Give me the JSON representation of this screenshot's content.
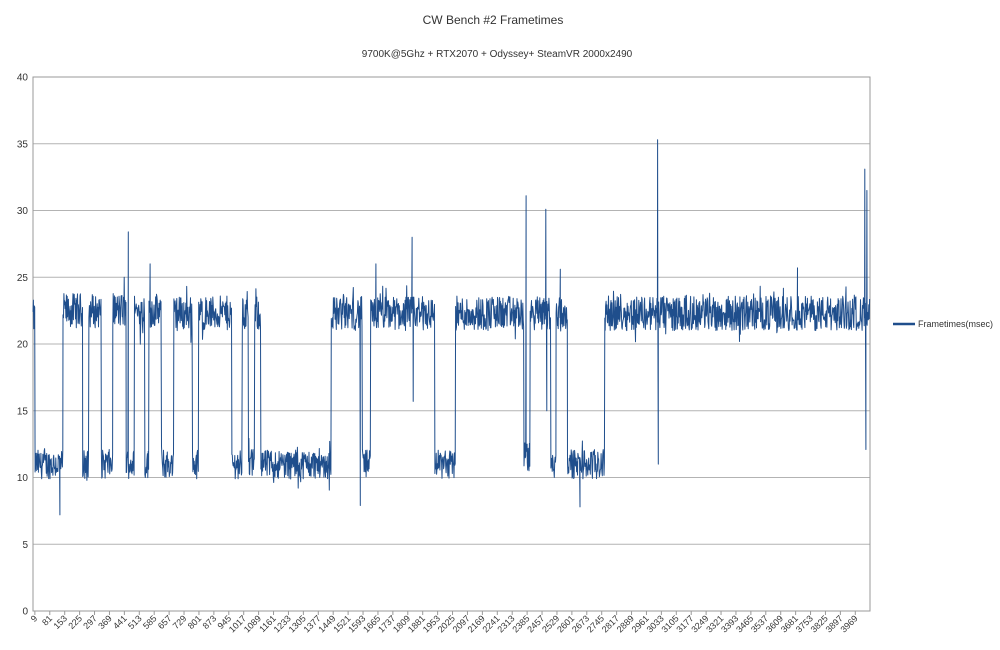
{
  "chart_data": {
    "type": "line",
    "title": "CW Bench #2 Frametimes",
    "subtitle": "9700K@5Ghz + RTX2070 + Odyssey+   SteamVR 2000x2490",
    "xlabel": "",
    "ylabel": "",
    "ylim": [
      0,
      40
    ],
    "yticks": [
      0,
      5,
      10,
      15,
      20,
      25,
      30,
      35,
      40
    ],
    "xlim": [
      0,
      4040
    ],
    "xtick_labels": [
      "9",
      "81",
      "153",
      "225",
      "297",
      "369",
      "441",
      "513",
      "585",
      "657",
      "729",
      "801",
      "873",
      "945",
      "1017",
      "1089",
      "1161",
      "1233",
      "1305",
      "1377",
      "1449",
      "1521",
      "1593",
      "1665",
      "1737",
      "1809",
      "1881",
      "1953",
      "2025",
      "2097",
      "2169",
      "2241",
      "2313",
      "2385",
      "2457",
      "2529",
      "2601",
      "2673",
      "2745",
      "2817",
      "2889",
      "2961",
      "3033",
      "3105",
      "3177",
      "3249",
      "3321",
      "3393",
      "3465",
      "3537",
      "3609",
      "3681",
      "3753",
      "3825",
      "3897",
      "3969"
    ],
    "grid": true,
    "legend_position": "right",
    "series": [
      {
        "name": "Frametimes(msec)",
        "color": "#1f4e8c",
        "segments": [
          {
            "x0": 0,
            "x1": 10,
            "level": 22.0
          },
          {
            "x0": 10,
            "x1": 120,
            "level": 11.0
          },
          {
            "x0": 120,
            "x1": 145,
            "level": 11.0
          },
          {
            "x0": 145,
            "x1": 240,
            "level": 22.5
          },
          {
            "x0": 240,
            "x1": 270,
            "level": 11.0
          },
          {
            "x0": 270,
            "x1": 330,
            "level": 22.5
          },
          {
            "x0": 330,
            "x1": 385,
            "level": 11.0
          },
          {
            "x0": 385,
            "x1": 450,
            "level": 22.5
          },
          {
            "x0": 450,
            "x1": 490,
            "level": 11.0
          },
          {
            "x0": 490,
            "x1": 540,
            "level": 22.5
          },
          {
            "x0": 540,
            "x1": 560,
            "level": 11.0
          },
          {
            "x0": 560,
            "x1": 620,
            "level": 22.5
          },
          {
            "x0": 620,
            "x1": 680,
            "level": 11.0
          },
          {
            "x0": 680,
            "x1": 770,
            "level": 22.3
          },
          {
            "x0": 770,
            "x1": 800,
            "level": 11.0
          },
          {
            "x0": 800,
            "x1": 960,
            "level": 22.3
          },
          {
            "x0": 960,
            "x1": 1010,
            "level": 11.0
          },
          {
            "x0": 1010,
            "x1": 1040,
            "level": 22.3
          },
          {
            "x0": 1040,
            "x1": 1070,
            "level": 11.0
          },
          {
            "x0": 1070,
            "x1": 1100,
            "level": 22.3
          },
          {
            "x0": 1100,
            "x1": 1440,
            "level": 11.0
          },
          {
            "x0": 1440,
            "x1": 1590,
            "level": 22.3
          },
          {
            "x0": 1590,
            "x1": 1630,
            "level": 11.0
          },
          {
            "x0": 1630,
            "x1": 1940,
            "level": 22.3
          },
          {
            "x0": 1940,
            "x1": 2040,
            "level": 11.0
          },
          {
            "x0": 2040,
            "x1": 2370,
            "level": 22.3
          },
          {
            "x0": 2370,
            "x1": 2400,
            "level": 11.5
          },
          {
            "x0": 2400,
            "x1": 2500,
            "level": 22.3
          },
          {
            "x0": 2500,
            "x1": 2525,
            "level": 11.0
          },
          {
            "x0": 2525,
            "x1": 2580,
            "level": 22.3
          },
          {
            "x0": 2580,
            "x1": 2760,
            "level": 11.0
          },
          {
            "x0": 2760,
            "x1": 4040,
            "level": 22.3
          }
        ],
        "spikes": [
          {
            "x": 5,
            "y": 22.0
          },
          {
            "x": 130,
            "y": 7.2
          },
          {
            "x": 440,
            "y": 25.0
          },
          {
            "x": 460,
            "y": 28.4
          },
          {
            "x": 565,
            "y": 26.0
          },
          {
            "x": 1580,
            "y": 7.9
          },
          {
            "x": 1655,
            "y": 26.0
          },
          {
            "x": 1830,
            "y": 28.0
          },
          {
            "x": 1835,
            "y": 15.7
          },
          {
            "x": 2380,
            "y": 31.1
          },
          {
            "x": 2385,
            "y": 12.5
          },
          {
            "x": 2475,
            "y": 30.1
          },
          {
            "x": 2480,
            "y": 15.0
          },
          {
            "x": 2545,
            "y": 25.6
          },
          {
            "x": 2640,
            "y": 7.8
          },
          {
            "x": 3015,
            "y": 35.3
          },
          {
            "x": 3018,
            "y": 11.0
          },
          {
            "x": 3690,
            "y": 25.7
          },
          {
            "x": 4015,
            "y": 33.1
          },
          {
            "x": 4020,
            "y": 12.1
          },
          {
            "x": 4025,
            "y": 31.5
          }
        ]
      }
    ]
  }
}
